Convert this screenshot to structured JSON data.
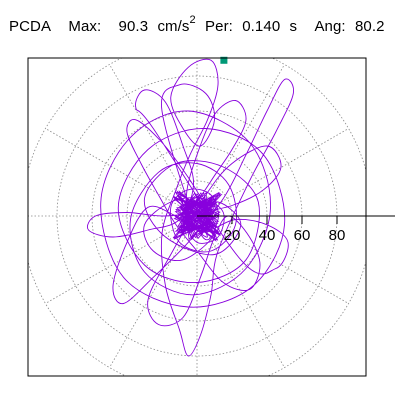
{
  "header": {
    "type_label": "PCDA",
    "max_label": "Max:",
    "max_value": "90.3",
    "max_unit": "cm/s",
    "max_unit_exp": "2",
    "per_label": "Per:",
    "per_value": "0.140",
    "per_unit": "s",
    "ang_label": "Ang:",
    "ang_value": "80.2"
  },
  "colors": {
    "trace": "#8800dd",
    "marker": "#009977",
    "grid": "#888888",
    "frame": "#000000"
  },
  "chart_data": {
    "type": "polar-orbit",
    "title": "PCDA  Max: 90.3 cm/s2  Per: 0.140 s  Ang: 80.2",
    "radial_ticks": [
      20,
      40,
      60,
      80
    ],
    "radial_range": [
      0,
      100
    ],
    "grid": true,
    "peak": {
      "value": 90.3,
      "angle_deg": 80.2
    },
    "orbit": [
      [
        0,
        0
      ],
      [
        12,
        8
      ],
      [
        25,
        -5
      ],
      [
        10,
        -22
      ],
      [
        -18,
        -12
      ],
      [
        -30,
        10
      ],
      [
        -12,
        30
      ],
      [
        15,
        28
      ],
      [
        35,
        8
      ],
      [
        28,
        -25
      ],
      [
        0,
        -38
      ],
      [
        -30,
        -28
      ],
      [
        -45,
        5
      ],
      [
        -28,
        38
      ],
      [
        5,
        50
      ],
      [
        38,
        35
      ],
      [
        50,
        -5
      ],
      [
        32,
        -40
      ],
      [
        -5,
        -52
      ],
      [
        -42,
        -35
      ],
      [
        -55,
        8
      ],
      [
        -38,
        45
      ],
      [
        -5,
        60
      ],
      [
        30,
        42
      ],
      [
        42,
        5
      ],
      [
        28,
        -30
      ],
      [
        -2,
        -45
      ],
      [
        -30,
        -32
      ],
      [
        -38,
        -2
      ],
      [
        -22,
        25
      ],
      [
        0,
        30
      ],
      [
        18,
        18
      ],
      [
        22,
        -5
      ],
      [
        8,
        -20
      ],
      [
        -10,
        -15
      ],
      [
        -15,
        5
      ],
      [
        -5,
        15
      ],
      [
        8,
        12
      ],
      [
        12,
        -2
      ],
      [
        2,
        -10
      ],
      [
        -20,
        60
      ],
      [
        -10,
        75
      ],
      [
        5,
        70
      ],
      [
        10,
        55
      ],
      [
        2,
        40
      ],
      [
        -8,
        50
      ],
      [
        -15,
        68
      ],
      [
        -5,
        85
      ],
      [
        8,
        89
      ],
      [
        12,
        75
      ],
      [
        6,
        55
      ],
      [
        -4,
        35
      ],
      [
        -12,
        15
      ],
      [
        -20,
        -10
      ],
      [
        -18,
        -40
      ],
      [
        -10,
        -65
      ],
      [
        -5,
        -80
      ],
      [
        2,
        -68
      ],
      [
        8,
        -45
      ],
      [
        12,
        -20
      ],
      [
        30,
        20
      ],
      [
        45,
        48
      ],
      [
        55,
        70
      ],
      [
        50,
        78
      ],
      [
        40,
        60
      ],
      [
        28,
        35
      ],
      [
        15,
        10
      ],
      [
        -5,
        -15
      ],
      [
        -25,
        -35
      ],
      [
        -42,
        -50
      ],
      [
        -48,
        -40
      ],
      [
        -40,
        -15
      ],
      [
        -28,
        5
      ],
      [
        -12,
        0
      ],
      [
        5,
        -8
      ],
      [
        22,
        -2
      ],
      [
        40,
        -5
      ],
      [
        52,
        -15
      ],
      [
        45,
        -30
      ],
      [
        25,
        -25
      ],
      [
        -25,
        50
      ],
      [
        -35,
        62
      ],
      [
        -30,
        72
      ],
      [
        -18,
        65
      ],
      [
        -8,
        40
      ],
      [
        -2,
        18
      ],
      [
        -10,
        -2
      ],
      [
        -28,
        -8
      ],
      [
        -48,
        -12
      ],
      [
        -62,
        -8
      ],
      [
        -58,
        0
      ],
      [
        -40,
        2
      ],
      [
        -20,
        0
      ],
      [
        0,
        2
      ],
      [
        20,
        6
      ],
      [
        38,
        15
      ],
      [
        48,
        28
      ],
      [
        40,
        40
      ],
      [
        20,
        30
      ],
      [
        5,
        12
      ],
      [
        -15,
        -22
      ],
      [
        -28,
        -48
      ],
      [
        -22,
        -62
      ],
      [
        -8,
        -58
      ],
      [
        2,
        -35
      ],
      [
        10,
        -12
      ],
      [
        18,
        0
      ],
      [
        30,
        -12
      ],
      [
        36,
        -28
      ],
      [
        30,
        -42
      ],
      [
        15,
        -38
      ],
      [
        0,
        -20
      ],
      [
        -12,
        -5
      ],
      [
        -22,
        12
      ],
      [
        -32,
        30
      ],
      [
        -40,
        48
      ],
      [
        -35,
        55
      ],
      [
        -20,
        42
      ],
      [
        -5,
        22
      ],
      [
        5,
        5
      ],
      [
        10,
        -10
      ],
      [
        -8,
        -25
      ],
      [
        -25,
        -20
      ],
      [
        -30,
        -5
      ],
      [
        -15,
        8
      ],
      [
        3,
        10
      ],
      [
        15,
        2
      ],
      [
        12,
        -12
      ],
      [
        0,
        -15
      ],
      [
        -5,
        -2
      ],
      [
        8,
        20
      ],
      [
        20,
        38
      ],
      [
        28,
        55
      ],
      [
        22,
        66
      ],
      [
        10,
        58
      ],
      [
        0,
        35
      ],
      [
        -6,
        12
      ],
      [
        -2,
        -5
      ],
      [
        6,
        -12
      ],
      [
        0,
        0
      ]
    ]
  }
}
